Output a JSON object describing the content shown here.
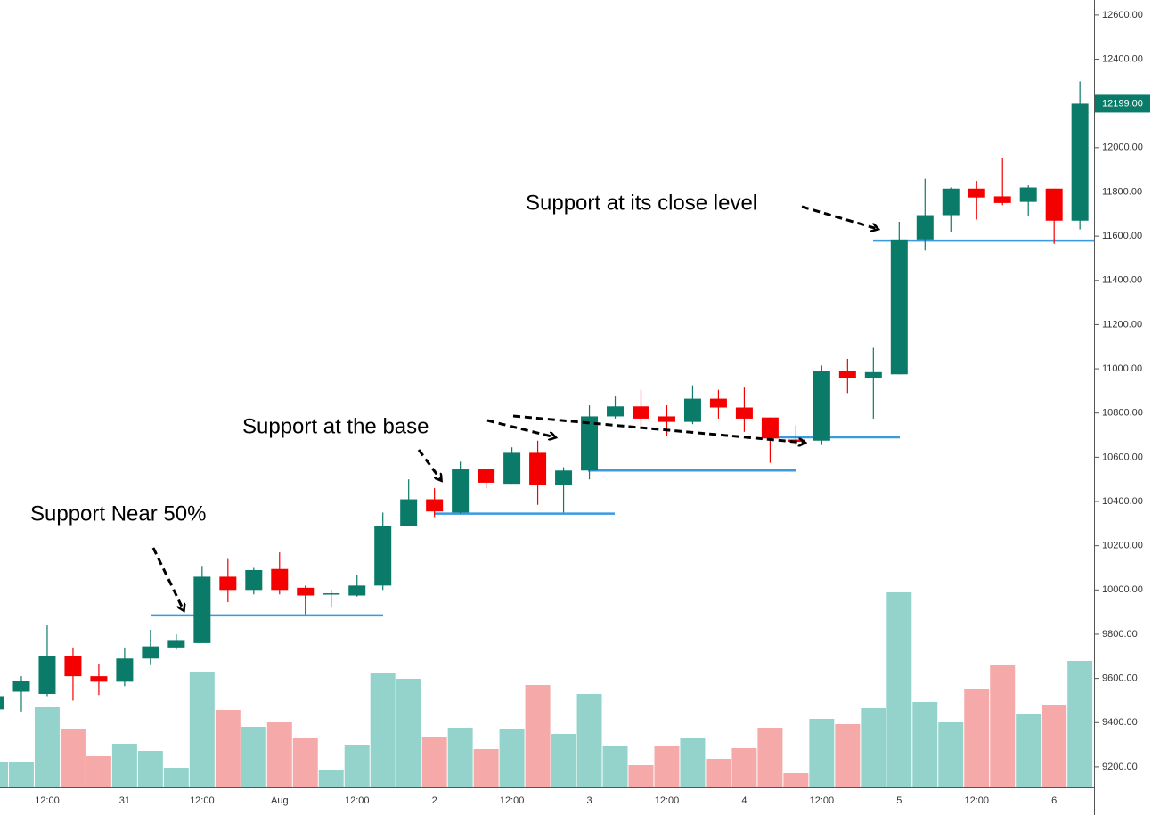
{
  "chart_data": {
    "type": "candlestick",
    "categories": [
      null,
      null,
      "12:00",
      null,
      null,
      "31",
      null,
      null,
      "12:00",
      null,
      null,
      "Aug",
      null,
      null,
      "12:00",
      null,
      null,
      "2",
      null,
      null,
      "12:00",
      null,
      null,
      "3",
      null,
      null,
      "12:00",
      null,
      null,
      "4",
      null,
      null,
      "12:00",
      null,
      null,
      "5",
      null,
      null,
      "12:00",
      null,
      null,
      "6",
      null
    ],
    "open": [
      9460,
      9540,
      9530,
      9700,
      9610,
      9585,
      9690,
      9740,
      9760,
      10060,
      10000,
      10095,
      10010,
      9980,
      9975,
      10020,
      10290,
      10410,
      10350,
      10545,
      10480,
      10620,
      10475,
      10540,
      10785,
      10830,
      10785,
      10760,
      10865,
      10825,
      10780,
      10680,
      10675,
      10990,
      10960,
      10975,
      11585,
      11695,
      11815,
      11780,
      11755,
      11815,
      11670
    ],
    "high": [
      9540,
      9610,
      9840,
      9740,
      9665,
      9740,
      9820,
      9800,
      10105,
      10140,
      10100,
      10170,
      10020,
      10000,
      10070,
      10350,
      10500,
      10460,
      10580,
      10545,
      10645,
      10675,
      10555,
      10835,
      10875,
      10905,
      10835,
      10925,
      10905,
      10915,
      10780,
      10745,
      11015,
      11045,
      11095,
      11665,
      11860,
      11820,
      11850,
      11955,
      11830,
      11815,
      12300
    ],
    "low": [
      9440,
      9450,
      9520,
      9500,
      9525,
      9565,
      9660,
      9730,
      9760,
      9945,
      9980,
      9980,
      9890,
      9920,
      9970,
      10000,
      10290,
      10330,
      10345,
      10460,
      10480,
      10385,
      10350,
      10500,
      10775,
      10745,
      10695,
      10750,
      10775,
      10715,
      10575,
      10655,
      10655,
      10890,
      10775,
      10975,
      11535,
      11620,
      11675,
      11740,
      11690,
      11565,
      11630
    ],
    "close": [
      9520,
      9590,
      9700,
      9610,
      9585,
      9690,
      9745,
      9770,
      10060,
      10000,
      10090,
      10000,
      9975,
      9985,
      10020,
      10290,
      10410,
      10355,
      10545,
      10485,
      10620,
      10475,
      10540,
      10785,
      10830,
      10775,
      10760,
      10865,
      10825,
      10775,
      10685,
      10670,
      10990,
      10960,
      10985,
      11585,
      11695,
      11815,
      11775,
      11750,
      11820,
      11670,
      12199
    ],
    "volume": [
      29,
      28,
      90,
      65,
      35,
      49,
      41,
      22,
      130,
      87,
      68,
      73,
      55,
      19,
      48,
      128,
      122,
      57,
      67,
      43,
      65,
      115,
      60,
      105,
      47,
      25,
      46,
      55,
      32,
      44,
      67,
      16,
      77,
      71,
      89,
      219,
      96,
      73,
      111,
      137,
      82,
      92,
      142
    ],
    "up_color": "#0b7b69",
    "down_color": "#f50000",
    "volume_up_color": "#94d3cc",
    "volume_down_color": "#f5a9a8",
    "ylim": [
      9107,
      12668
    ],
    "yticks": [
      {
        "value": 9200,
        "label": "9200.00"
      },
      {
        "value": 9400,
        "label": "9400.00"
      },
      {
        "value": 9600,
        "label": "9600.00"
      },
      {
        "value": 9800,
        "label": "9800.00"
      },
      {
        "value": 10000,
        "label": "10000.00"
      },
      {
        "value": 10200,
        "label": "10200.00"
      },
      {
        "value": 10400,
        "label": "10400.00"
      },
      {
        "value": 10600,
        "label": "10600.00"
      },
      {
        "value": 10800,
        "label": "10800.00"
      },
      {
        "value": 11000,
        "label": "11000.00"
      },
      {
        "value": 11200,
        "label": "11200.00"
      },
      {
        "value": 11400,
        "label": "11400.00"
      },
      {
        "value": 11600,
        "label": "11600.00"
      },
      {
        "value": 11800,
        "label": "11800.00"
      },
      {
        "value": 12000,
        "label": "12000.00"
      },
      {
        "value": 12200,
        "label": "12200.00"
      },
      {
        "value": 12400,
        "label": "12400.00"
      },
      {
        "value": 12600,
        "label": "12600.00"
      }
    ],
    "last_price": {
      "value": 12199,
      "label": "12199.00"
    },
    "support_levels": [
      9885,
      10345,
      10540,
      10690,
      11580
    ],
    "support_color": "#3a9ae0",
    "annotations": [
      "Support Near 50%",
      "Support at the base",
      "Support at its close level"
    ]
  }
}
